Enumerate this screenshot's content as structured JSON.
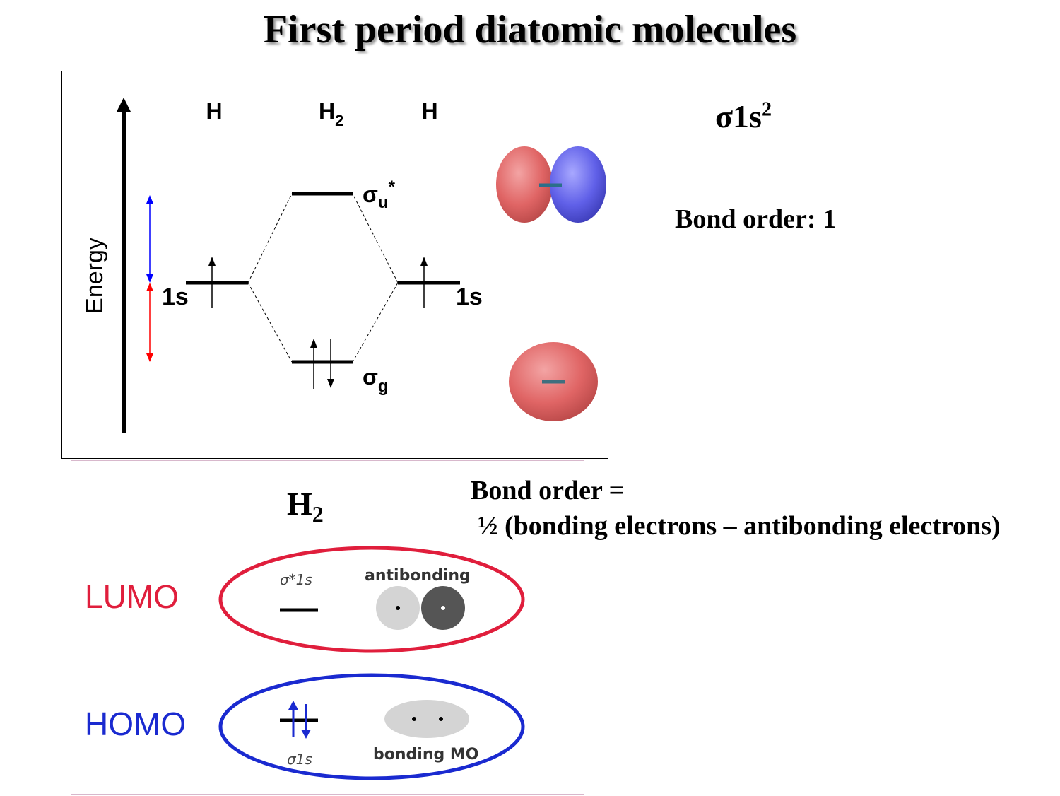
{
  "title": "First period diatomic molecules",
  "mo_diagram": {
    "energy_axis_label": "Energy",
    "left_atom_label": "H",
    "molecule_label_main": "H",
    "molecule_label_sub": "2",
    "right_atom_label": "H",
    "left_orbital_label": "1s",
    "right_orbital_label": "1s",
    "antibonding_label_main": "σ",
    "antibonding_label_sub": "u",
    "antibonding_label_sup": "*",
    "bonding_label_main": "σ",
    "bonding_label_sub": "g",
    "colors": {
      "destabilization_arrow": "#0000ff",
      "stabilization_arrow": "#ff0000",
      "orbital_lobe_positive": "#e06565",
      "orbital_lobe_negative": "#6060e8"
    }
  },
  "configuration": {
    "main": "σ1s",
    "sup": "2"
  },
  "bond_order_label": "Bond order: 1",
  "formula": {
    "line1": "Bond order =",
    "line2": "½ (bonding electrons – antibonding electrons)"
  },
  "lumo_homo_panel": {
    "title_main": "H",
    "title_sub": "2",
    "lumo_label": "LUMO",
    "lumo_orbital_label": "σ*1s",
    "lumo_type_label": "antibonding",
    "homo_label": "HOMO",
    "homo_orbital_label": "σ1s",
    "homo_type_label": "bonding MO",
    "colors": {
      "lumo": "#e01e3c",
      "homo": "#1a2ad0",
      "lobe_light": "#d4d4d4",
      "lobe_dark": "#555555"
    }
  }
}
